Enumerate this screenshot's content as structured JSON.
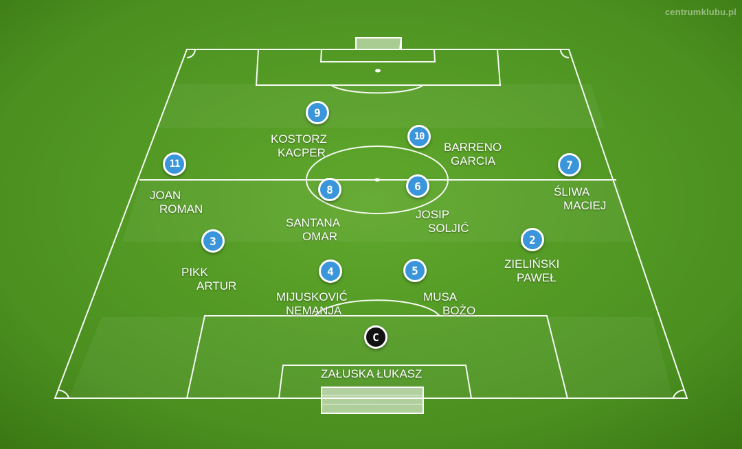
{
  "watermark": "centrumklubu.pl",
  "colors": {
    "pitch_light": "#5aa02a",
    "pitch_dark": "#3f7f16",
    "badge": "#3b95db",
    "captain_badge": "#111111",
    "line": "#ffffff"
  },
  "players": [
    {
      "number": "9",
      "first_line": "KOSTORZ",
      "second_line": "KACPER"
    },
    {
      "number": "10",
      "first_line": "BARRENO",
      "second_line": "GARCIA"
    },
    {
      "number": "11",
      "first_line": "JOAN",
      "second_line": "ROMAN"
    },
    {
      "number": "7",
      "first_line": "ŚLIWA",
      "second_line": "MACIEJ"
    },
    {
      "number": "8",
      "first_line": "SANTANA",
      "second_line": "OMAR"
    },
    {
      "number": "6",
      "first_line": "JOSIP",
      "second_line": "SOLJIĆ"
    },
    {
      "number": "3",
      "first_line": "PIKK",
      "second_line": "ARTUR"
    },
    {
      "number": "2",
      "first_line": "ZIELIŃSKI",
      "second_line": "PAWEŁ"
    },
    {
      "number": "4",
      "first_line": "MIJUSKOVIĆ",
      "second_line": "NEMANJA"
    },
    {
      "number": "5",
      "first_line": "MUSA",
      "second_line": "BOŻO"
    },
    {
      "number": "C",
      "first_line": "ZAŁUSKA ŁUKASZ",
      "second_line": ""
    }
  ]
}
